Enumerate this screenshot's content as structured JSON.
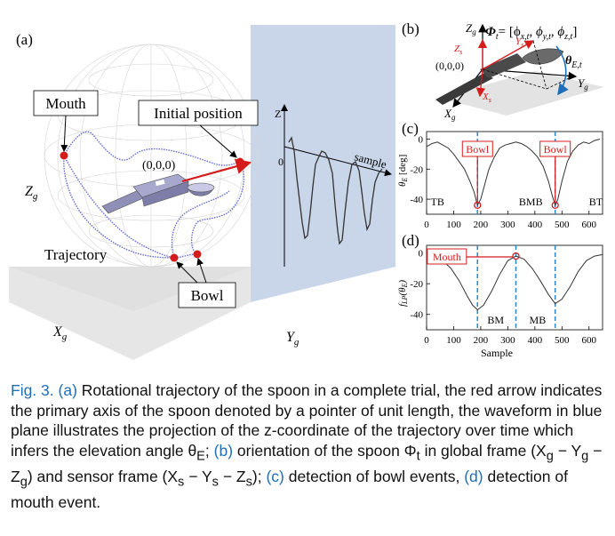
{
  "panel_a": {
    "label": "(a)",
    "mouth": "Mouth",
    "initial_position": "Initial position",
    "origin": "(0,0,0)",
    "trajectory": "Trajectory",
    "bowl": "Bowl",
    "axis_z": "Z",
    "axis_zg": "Z",
    "axis_zg_sub": "g",
    "axis_xg": "X",
    "axis_xg_sub": "g",
    "axis_yg": "Y",
    "axis_yg_sub": "g",
    "wave_zero": "0",
    "sample": "sample"
  },
  "panel_b": {
    "label": "(b)",
    "origin": "(0,0,0)",
    "zg": "Z",
    "xg": "X",
    "yg": "Y",
    "zs": "Z",
    "xs": "X",
    "ys": "Y",
    "theta": "θ",
    "theta_sub": "E,t",
    "phi_eq": "Φ",
    "phi_sub": "t",
    "phi_rhs": "= [ϕ",
    "phi_x": "x,t",
    "phi_y": "y,t",
    "phi_z": "z,t",
    "phi_close": "]"
  },
  "chart_data": [
    {
      "type": "line",
      "panel": "(c)",
      "ylabel": "θE [deg]",
      "xlabel": "Sample",
      "xticks": [
        "0",
        "100",
        "200",
        "300",
        "400",
        "500",
        "600"
      ],
      "yticks": [
        "0",
        "-20",
        "-40"
      ],
      "xlim": [
        0,
        650
      ],
      "ylim": [
        -50,
        5
      ],
      "annotations": [
        "Bowl",
        "Bowl"
      ],
      "regions": [
        "TB",
        "BMB",
        "BT"
      ],
      "events_x": [
        188,
        475
      ],
      "series": [
        {
          "x": [
            0,
            20,
            40,
            60,
            80,
            100,
            120,
            140,
            160,
            175,
            188,
            200,
            215,
            230,
            250,
            270,
            290,
            310,
            330,
            350,
            370,
            390,
            410,
            430,
            450,
            465,
            475,
            485,
            500,
            520,
            540,
            560,
            580,
            600,
            620,
            640
          ],
          "y": [
            -5,
            -3,
            -2,
            -4,
            -6,
            -10,
            -15,
            -20,
            -28,
            -35,
            -44,
            -40,
            -30,
            -20,
            -12,
            -6,
            -4,
            -3,
            -2,
            -3,
            -5,
            -8,
            -12,
            -18,
            -28,
            -38,
            -44,
            -40,
            -28,
            -15,
            -8,
            -4,
            -2,
            -3,
            -1,
            0
          ]
        }
      ]
    },
    {
      "type": "line",
      "panel": "(d)",
      "ylabel": "fLP(θE)",
      "xlabel": "Sample",
      "xticks": [
        "0",
        "100",
        "200",
        "300",
        "400",
        "500",
        "600"
      ],
      "yticks": [
        "0",
        "-20",
        "-40"
      ],
      "xlim": [
        0,
        650
      ],
      "ylim": [
        -50,
        5
      ],
      "annotations": [
        "Mouth"
      ],
      "regions": [
        "BM",
        "MB"
      ],
      "events_x": [
        188,
        330,
        475
      ],
      "series": [
        {
          "x": [
            0,
            30,
            60,
            90,
            120,
            150,
            170,
            188,
            210,
            240,
            270,
            300,
            330,
            360,
            390,
            420,
            450,
            475,
            500,
            530,
            560,
            590,
            620,
            650
          ],
          "y": [
            -3,
            -3,
            -5,
            -10,
            -18,
            -28,
            -34,
            -37,
            -34,
            -25,
            -14,
            -5,
            -2,
            -4,
            -10,
            -18,
            -27,
            -33,
            -30,
            -22,
            -12,
            -5,
            -2,
            -1
          ]
        }
      ]
    }
  ],
  "panel_c": {
    "label": "(c)"
  },
  "panel_d": {
    "label": "(d)"
  },
  "caption": {
    "fig": "Fig. 3.",
    "a": "(a)",
    "text1": " Rotational trajectory of the spoon in a complete trial, the red arrow indicates the primary axis of the spoon denoted by a pointer of unit length, the waveform in blue plane illustrates the projection of the z-coordinate of the trajectory over time which infers the elevation angle θ",
    "text1_sub": "E",
    "b": "(b)",
    "text2": " orientation of the spoon Φ",
    "text2_sub": "t",
    "text3": " in global frame (X",
    "text3b": "g",
    "text3c": " − Y",
    "text3d": "g",
    "text3e": " − Z",
    "text3f": "g",
    "text3g": ") and sensor frame (X",
    "text3h": "s",
    "text3i": " − Y",
    "text3j": "s",
    "text3k": " − Z",
    "text3l": "s",
    "text3m": ");",
    "c": "(c)",
    "text4": " detection of bowl events,",
    "d": "(d)",
    "text5": " detection of mouth event."
  },
  "colors": {
    "red": "#d41c1c",
    "blue_dash": "#2a86c8",
    "plane_blue": "#c9d6ea",
    "caption_blue": "#1f6fb8",
    "trajectory": "#6c72d4"
  }
}
